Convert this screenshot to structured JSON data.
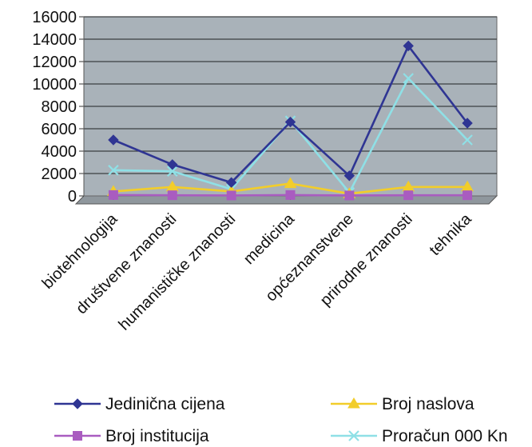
{
  "chart_data": {
    "type": "line",
    "title": "",
    "xlabel": "",
    "ylabel": "",
    "ylim": [
      0,
      16000
    ],
    "y_ticks": [
      0,
      2000,
      4000,
      6000,
      8000,
      10000,
      12000,
      14000,
      16000
    ],
    "grid": true,
    "plot_background": "#a9b2b9",
    "legend_position": "bottom",
    "categories": [
      "biotehnologija",
      "društvene znanosti",
      "humanističke znanosti",
      "medicina",
      "općeznanstvene",
      "prirodne znanosti",
      "tehnika"
    ],
    "series": [
      {
        "name": "Jedinična cijena",
        "color": "#2f3593",
        "marker": "diamond",
        "values": [
          5000,
          2800,
          1200,
          6600,
          1800,
          13400,
          6500
        ]
      },
      {
        "name": "Broj institucija",
        "color": "#a95cc0",
        "marker": "square",
        "values": [
          80,
          60,
          40,
          80,
          40,
          60,
          60
        ]
      },
      {
        "name": "Broj naslova",
        "color": "#f2cd2a",
        "marker": "triangle",
        "values": [
          400,
          800,
          400,
          1100,
          200,
          800,
          800
        ]
      },
      {
        "name": "Proračun 000 Kn",
        "color": "#8fe0e6",
        "marker": "x",
        "values": [
          2300,
          2200,
          600,
          6700,
          300,
          10500,
          5000
        ]
      }
    ]
  }
}
